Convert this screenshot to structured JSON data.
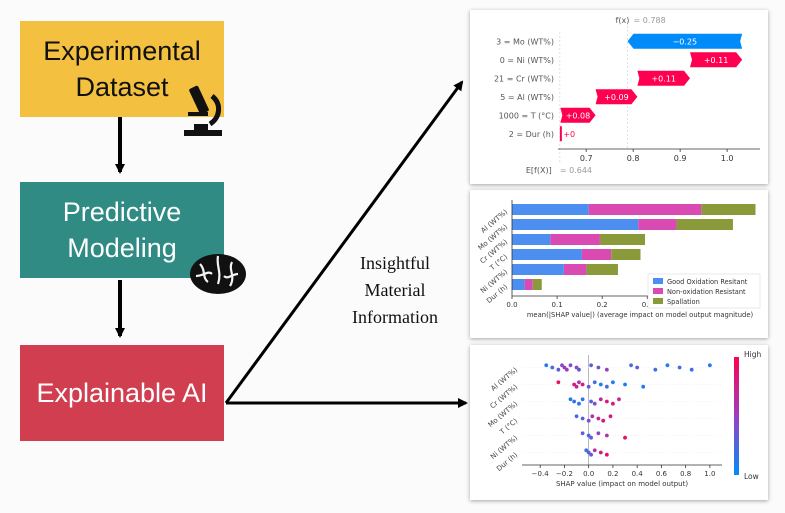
{
  "boxes": {
    "dataset": {
      "line1": "Experimental",
      "line2": "Dataset"
    },
    "modeling": {
      "line1": "Predictive",
      "line2": "Modeling"
    },
    "xai": {
      "label": "Explainable AI"
    }
  },
  "center_label": {
    "line1": "Insightful",
    "line2": "Material",
    "line3": "Information"
  },
  "colors": {
    "dataset": "#f4c03f",
    "modeling": "#2f8b84",
    "xai": "#d13e50",
    "shap_pos": "#ff0051",
    "shap_neg": "#008bfb",
    "good": "#4c8ff0",
    "non": "#d94bb3",
    "spall": "#8a9a3a"
  },
  "chart_data": [
    {
      "type": "waterfall",
      "fx_label": "f(x)",
      "fx_value": "0.788",
      "ex_label": "E[f(X)]",
      "ex_value": "0.644",
      "xlim": [
        0.64,
        1.07
      ],
      "ticks": [
        "0.7",
        "0.8",
        "0.9",
        "1.0"
      ],
      "tick_values": [
        0.7,
        0.8,
        0.9,
        1.0
      ],
      "features": [
        {
          "label": "3 = Mo (WT%)",
          "start": 1.032,
          "end": 0.788,
          "text": "−0.25"
        },
        {
          "label": "0 = Ni (WT%)",
          "start": 0.921,
          "end": 1.032,
          "text": "+0.11"
        },
        {
          "label": "21 = Cr (WT%)",
          "start": 0.809,
          "end": 0.921,
          "text": "+0.11"
        },
        {
          "label": "5 = Al (WT%)",
          "start": 0.72,
          "end": 0.809,
          "text": "+0.09"
        },
        {
          "label": "1000 = T (°C)",
          "start": 0.645,
          "end": 0.72,
          "text": "+0.08"
        },
        {
          "label": "2 = Dur (h)",
          "start": 0.644,
          "end": 0.645,
          "text": "+0"
        }
      ]
    },
    {
      "type": "bar",
      "stacked": true,
      "orientation": "horizontal",
      "categories": [
        "Al (WT%)",
        "Mo (WT%)",
        "Cr (WT%)",
        "T (°C)",
        "Ni (WT%)",
        "Dur (h)"
      ],
      "series": [
        {
          "name": "Good Oxidation Resitant",
          "values": [
            0.17,
            0.28,
            0.085,
            0.155,
            0.115,
            0.028
          ]
        },
        {
          "name": "Non-oxidation Resistant",
          "values": [
            0.25,
            0.085,
            0.11,
            0.065,
            0.05,
            0.018
          ]
        },
        {
          "name": "Spallation",
          "values": [
            0.12,
            0.125,
            0.1,
            0.065,
            0.07,
            0.02
          ]
        }
      ],
      "xlim": [
        0,
        0.55
      ],
      "ticks": [
        "0.0",
        "0.1",
        "0.2",
        "0.3",
        "0.4",
        "0.5"
      ],
      "tick_values": [
        0.0,
        0.1,
        0.2,
        0.3,
        0.4,
        0.5
      ],
      "xlabel": "mean(|SHAP value|) (average impact on model output magnitude)",
      "legend": "right"
    },
    {
      "type": "scatter",
      "subtype": "beeswarm",
      "categories": [
        "Al (WT%)",
        "Cr (WT%)",
        "Mo (WT%)",
        "T (°C)",
        "Ni (WT%)",
        "Dur (h)"
      ],
      "xlim": [
        -0.55,
        1.1
      ],
      "ticks": [
        "−0.4",
        "−0.2",
        "0.0",
        "0.2",
        "0.4",
        "0.6",
        "0.8",
        "1.0"
      ],
      "tick_values": [
        -0.4,
        -0.2,
        0.0,
        0.2,
        0.4,
        0.6,
        0.8,
        1.0
      ],
      "xlabel": "SHAP value (impact on model output)",
      "colorbar": {
        "high": "High",
        "low": "Low"
      },
      "rows": [
        {
          "points": [
            [
              -0.35,
              0.1
            ],
            [
              -0.3,
              0.2
            ],
            [
              -0.25,
              0.3
            ],
            [
              -0.22,
              0.4
            ],
            [
              -0.2,
              0.6
            ],
            [
              -0.18,
              0.5
            ],
            [
              -0.15,
              0.4
            ],
            [
              -0.1,
              0.5
            ],
            [
              -0.08,
              0.3
            ],
            [
              0.02,
              0.3
            ],
            [
              0.08,
              0.4
            ],
            [
              0.15,
              0.5
            ],
            [
              0.35,
              0.2
            ],
            [
              0.4,
              0.3
            ],
            [
              0.55,
              0.2
            ],
            [
              0.65,
              0.1
            ],
            [
              0.75,
              0.2
            ],
            [
              0.85,
              0.2
            ],
            [
              1.0,
              0.1
            ]
          ]
        },
        {
          "points": [
            [
              -0.25,
              0.9
            ],
            [
              -0.12,
              0.8
            ],
            [
              -0.1,
              0.7
            ],
            [
              -0.08,
              0.6
            ],
            [
              -0.05,
              0.8
            ],
            [
              0.0,
              0.3
            ],
            [
              0.05,
              0.2
            ],
            [
              0.1,
              0.1
            ],
            [
              0.15,
              0.2
            ],
            [
              0.2,
              0.1
            ],
            [
              0.3,
              0.1
            ],
            [
              0.45,
              0.1
            ]
          ]
        },
        {
          "points": [
            [
              -0.15,
              0.1
            ],
            [
              -0.12,
              0.2
            ],
            [
              -0.08,
              0.1
            ],
            [
              -0.05,
              0.2
            ],
            [
              0.02,
              0.3
            ],
            [
              0.05,
              0.4
            ],
            [
              0.1,
              0.7
            ],
            [
              0.15,
              0.8
            ],
            [
              0.2,
              0.8
            ],
            [
              0.25,
              0.7
            ]
          ]
        },
        {
          "points": [
            [
              -0.1,
              0.2
            ],
            [
              -0.05,
              0.3
            ],
            [
              0.0,
              0.4
            ],
            [
              0.03,
              0.6
            ],
            [
              0.08,
              0.7
            ],
            [
              0.12,
              0.8
            ],
            [
              0.18,
              0.8
            ]
          ]
        },
        {
          "points": [
            [
              -0.05,
              0.3
            ],
            [
              0.0,
              0.2
            ],
            [
              0.02,
              0.3
            ],
            [
              0.08,
              0.5
            ],
            [
              0.15,
              0.6
            ],
            [
              0.3,
              0.9
            ]
          ]
        },
        {
          "points": [
            [
              -0.02,
              0.2
            ],
            [
              0.0,
              0.3
            ],
            [
              0.02,
              0.3
            ],
            [
              0.05,
              0.6
            ],
            [
              0.1,
              0.8
            ],
            [
              0.15,
              0.9
            ]
          ]
        }
      ]
    }
  ]
}
